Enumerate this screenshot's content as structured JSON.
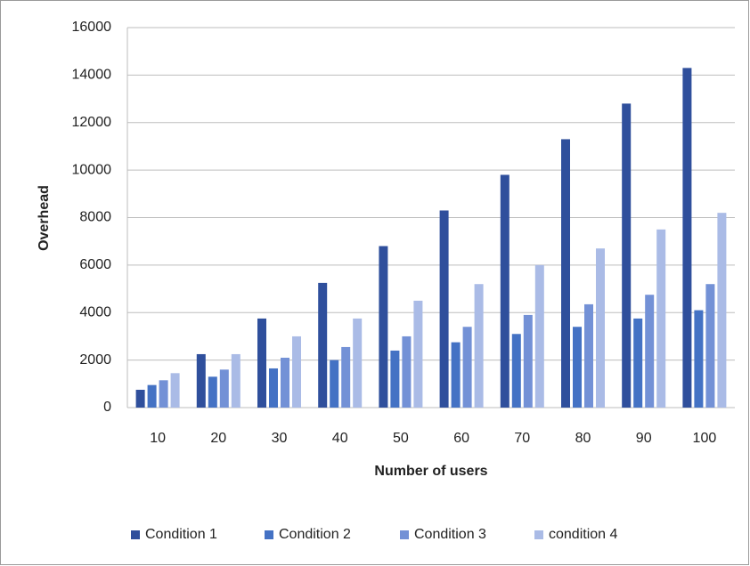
{
  "chart_data": {
    "type": "bar",
    "x_label": "Number of users",
    "y_label": "Overhead",
    "categories": [
      "10",
      "20",
      "30",
      "40",
      "50",
      "60",
      "70",
      "80",
      "90",
      "100"
    ],
    "series": [
      {
        "name": "Condition 1",
        "color": "#2f4f9c",
        "values": [
          750,
          2250,
          3750,
          5250,
          6800,
          8300,
          9800,
          11300,
          12800,
          14300
        ]
      },
      {
        "name": "Condition 2",
        "color": "#4472c4",
        "values": [
          950,
          1300,
          1650,
          2000,
          2400,
          2750,
          3100,
          3400,
          3750,
          4100
        ]
      },
      {
        "name": "Condition 3",
        "color": "#7391d6",
        "values": [
          1150,
          1600,
          2100,
          2550,
          3000,
          3400,
          3900,
          4350,
          4750,
          5200
        ]
      },
      {
        "name": "condition 4",
        "color": "#aabbe6",
        "values": [
          1450,
          2250,
          3000,
          3750,
          4500,
          5200,
          6000,
          6700,
          7500,
          8200
        ]
      }
    ],
    "ylim": [
      0,
      16000
    ],
    "yticks": [
      0,
      2000,
      4000,
      6000,
      8000,
      10000,
      12000,
      14000,
      16000
    ],
    "grid": true,
    "legend": "bottom"
  }
}
